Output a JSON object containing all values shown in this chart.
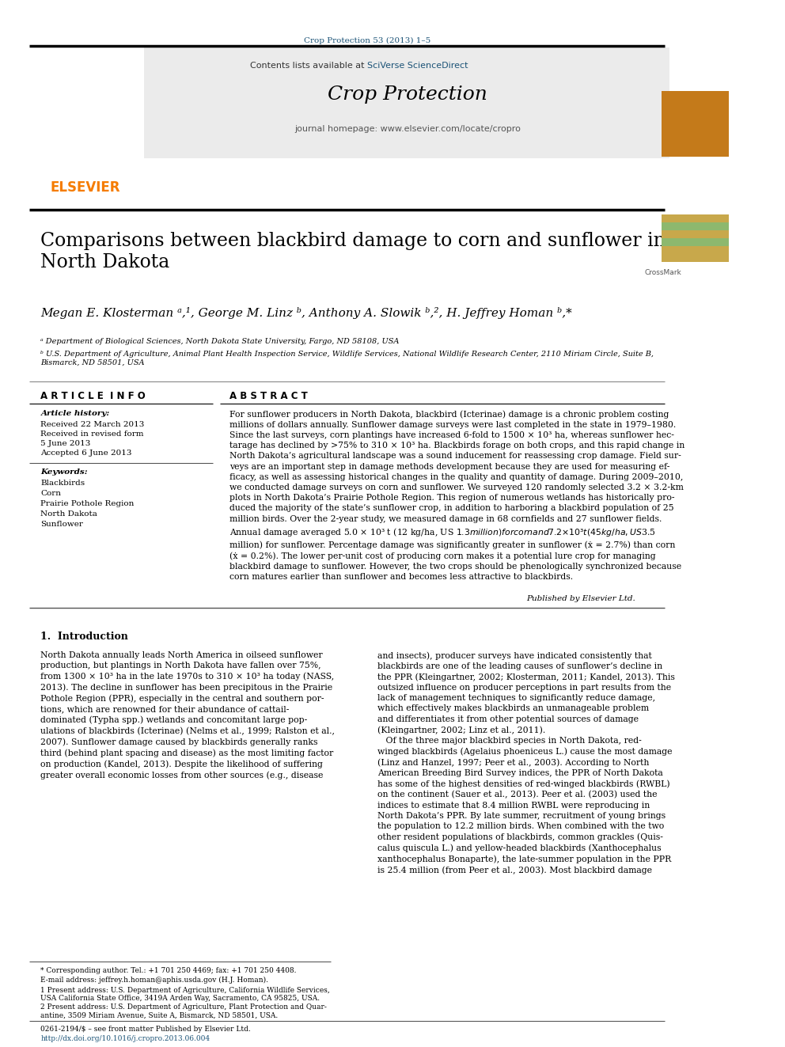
{
  "page_width": 9.92,
  "page_height": 13.23,
  "background_color": "#ffffff",
  "top_journal_text": "Crop Protection 53 (2013) 1–5",
  "top_journal_color": "#1a5276",
  "header_bg_color": "#e8e8e8",
  "header_contents_text": "Contents lists available at ",
  "header_sciverse_text": "SciVerse ScienceDirect",
  "header_sciverse_color": "#1a5276",
  "header_journal_title": "Crop Protection",
  "header_homepage_text": "journal homepage: www.elsevier.com/locate/cropro",
  "elsevier_color": "#f57c00",
  "article_title": "Comparisons between blackbird damage to corn and sunflower in\nNorth Dakota",
  "authors": "Megan E. Klosterman ᵃ,¹, George M. Linz ᵇ, Anthony A. Slowik ᵇ,², H. Jeffrey Homan ᵇ,*",
  "affiliation_a": "ᵃ Department of Biological Sciences, North Dakota State University, Fargo, ND 58108, USA",
  "affiliation_b": "ᵇ U.S. Department of Agriculture, Animal Plant Health Inspection Service, Wildlife Services, National Wildlife Research Center, 2110 Miriam Circle, Suite B,\nBismarck, ND 58501, USA",
  "article_info_title": "A R T I C L E  I N F O",
  "article_history_title": "Article history:",
  "received": "Received 22 March 2013",
  "revised": "Received in revised form",
  "revised2": "5 June 2013",
  "accepted": "Accepted 6 June 2013",
  "keywords_title": "Keywords:",
  "keywords": [
    "Blackbirds",
    "Corn",
    "Prairie Pothole Region",
    "North Dakota",
    "Sunflower"
  ],
  "abstract_title": "A B S T R A C T",
  "abstract_text": "For sunflower producers in North Dakota, blackbird (Icterinae) damage is a chronic problem costing\nmillions of dollars annually. Sunflower damage surveys were last completed in the state in 1979–1980.\nSince the last surveys, corn plantings have increased 6-fold to 1500 × 10³ ha, whereas sunflower hec-\ntarage has declined by >75% to 310 × 10³ ha. Blackbirds forage on both crops, and this rapid change in\nNorth Dakota’s agricultural landscape was a sound inducement for reassessing crop damage. Field sur-\nveys are an important step in damage methods development because they are used for measuring ef-\nficacy, as well as assessing historical changes in the quality and quantity of damage. During 2009–2010,\nwe conducted damage surveys on corn and sunflower. We surveyed 120 randomly selected 3.2 × 3.2-km\nplots in North Dakota’s Prairie Pothole Region. This region of numerous wetlands has historically pro-\nduced the majority of the state’s sunflower crop, in addition to harboring a blackbird population of 25\nmillion birds. Over the 2-year study, we measured damage in 68 cornfields and 27 sunflower fields.\nAnnual damage averaged 5.0 × 10³ t (12 kg/ha, US $1.3 million) for corn and 7.2 × 10³ t (45 kg/ha, US $3.5\nmillion) for sunflower. Percentage damage was significantly greater in sunflower (ẋ = 2.7%) than corn\n(ẋ = 0.2%). The lower per-unit cost of producing corn makes it a potential lure crop for managing\nblackbird damage to sunflower. However, the two crops should be phenologically synchronized because\ncorn matures earlier than sunflower and becomes less attractive to blackbirds.",
  "published_by": "Published by Elsevier Ltd.",
  "intro_title": "1.  Introduction",
  "intro_left": "North Dakota annually leads North America in oilseed sunflower\nproduction, but plantings in North Dakota have fallen over 75%,\nfrom 1300 × 10³ ha in the late 1970s to 310 × 10³ ha today (NASS,\n2013). The decline in sunflower has been precipitous in the Prairie\nPothole Region (PPR), especially in the central and southern por-\ntions, which are renowned for their abundance of cattail-\ndominated (Typha spp.) wetlands and concomitant large pop-\nulations of blackbirds (Icterinae) (Nelms et al., 1999; Ralston et al.,\n2007). Sunflower damage caused by blackbirds generally ranks\nthird (behind plant spacing and disease) as the most limiting factor\non production (Kandel, 2013). Despite the likelihood of suffering\ngreater overall economic losses from other sources (e.g., disease",
  "intro_right": "and insects), producer surveys have indicated consistently that\nblackbirds are one of the leading causes of sunflower’s decline in\nthe PPR (Kleingartner, 2002; Klosterman, 2011; Kandel, 2013). This\noutsized influence on producer perceptions in part results from the\nlack of management techniques to significantly reduce damage,\nwhich effectively makes blackbirds an unmanageable problem\nand differentiates it from other potential sources of damage\n(Kleingartner, 2002; Linz et al., 2011).\n   Of the three major blackbird species in North Dakota, red-\nwinged blackbirds (Agelaius phoeniceus L.) cause the most damage\n(Linz and Hanzel, 1997; Peer et al., 2003). According to North\nAmerican Breeding Bird Survey indices, the PPR of North Dakota\nhas some of the highest densities of red-winged blackbirds (RWBL)\non the continent (Sauer et al., 2013). Peer et al. (2003) used the\nindices to estimate that 8.4 million RWBL were reproducing in\nNorth Dakota’s PPR. By late summer, recruitment of young brings\nthe population to 12.2 million birds. When combined with the two\nother resident populations of blackbirds, common grackles (Quis-\ncalus quiscula L.) and yellow-headed blackbirds (Xanthocephalus\nxanthocephalus Bonaparte), the late-summer population in the PPR\nis 25.4 million (from Peer et al., 2003). Most blackbird damage",
  "footnote_star": "* Corresponding author. Tel.: +1 701 250 4469; fax: +1 701 250 4408.",
  "footnote_email": "E-mail address: jeffrey.h.homan@aphis.usda.gov (H.J. Homan).",
  "footnote_1": "1 Present address: U.S. Department of Agriculture, California Wildlife Services,\nUSA California State Office, 3419A Arden Way, Sacramento, CA 95825, USA.",
  "footnote_2": "2 Present address: U.S. Department of Agriculture, Plant Protection and Quar-\nantine, 3509 Miriam Avenue, Suite A, Bismarck, ND 58501, USA.",
  "bottom_issn": "0261-2194/$ – see front matter Published by Elsevier Ltd.",
  "bottom_doi": "http://dx.doi.org/10.1016/j.cropro.2013.06.004",
  "stripe_colors": [
    "#c8a84b",
    "#8db86e",
    "#c8a84b",
    "#8db86e",
    "#c8a84b",
    "#c8a84b"
  ]
}
